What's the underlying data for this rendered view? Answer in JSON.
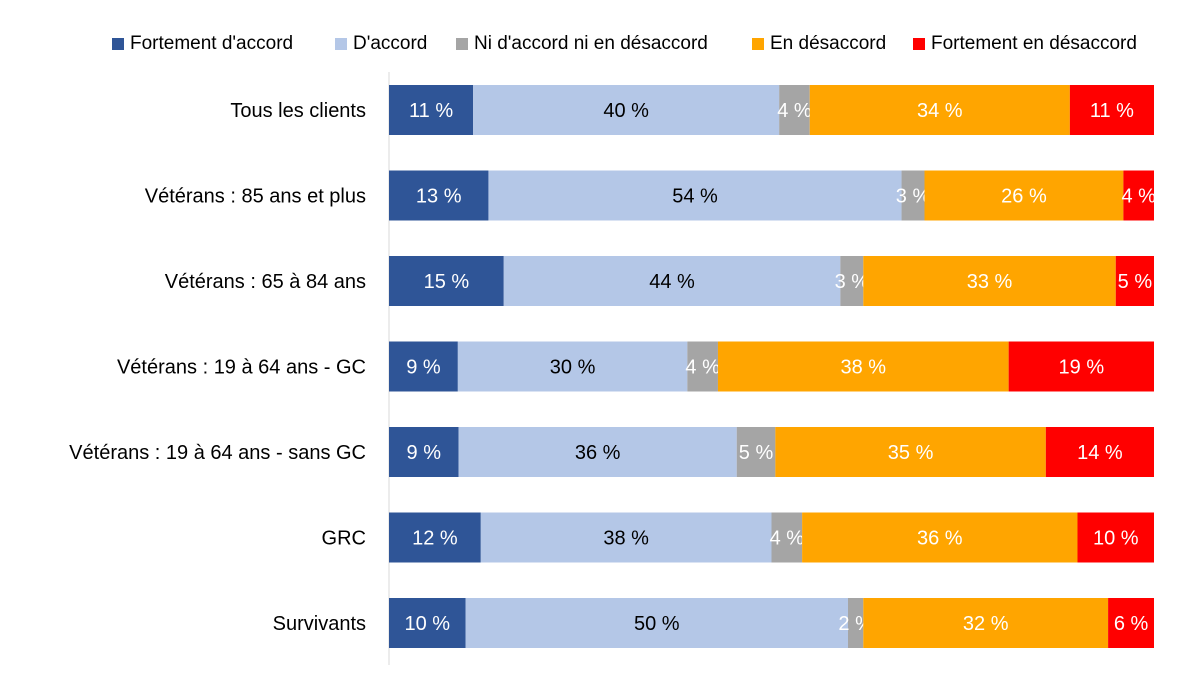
{
  "chart_data": {
    "type": "bar",
    "orientation": "horizontal",
    "stacked": true,
    "percent_stacked": true,
    "categories": [
      "Tous les clients",
      "Vétérans : 85 ans et plus",
      "Vétérans : 65 à 84 ans",
      "Vétérans : 19 à 64 ans - GC",
      "Vétérans : 19 à 64 ans - sans GC",
      "GRC",
      "Survivants"
    ],
    "series": [
      {
        "name": "Fortement d'accord",
        "color": "#2F5597",
        "label_color": "#FFFFFF",
        "values": [
          11,
          13,
          15,
          9,
          9,
          12,
          10
        ]
      },
      {
        "name": "D'accord",
        "color": "#B4C7E7",
        "label_color": "#000000",
        "values": [
          40,
          54,
          44,
          30,
          36,
          38,
          50
        ]
      },
      {
        "name": "Ni d'accord ni en désaccord",
        "color": "#A5A5A5",
        "label_color": "#FFFFFF",
        "values": [
          4,
          3,
          3,
          4,
          5,
          4,
          2
        ]
      },
      {
        "name": "En désaccord",
        "color": "#FFA500",
        "label_color": "#FFFFFF",
        "values": [
          34,
          26,
          33,
          38,
          35,
          36,
          32
        ]
      },
      {
        "name": "Fortement en désaccord",
        "color": "#FF0000",
        "label_color": "#FFFFFF",
        "values": [
          11,
          4,
          5,
          19,
          14,
          10,
          6
        ]
      }
    ],
    "value_suffix": " %",
    "legend_position": "top",
    "grid": false,
    "xlim": [
      0,
      100
    ]
  }
}
